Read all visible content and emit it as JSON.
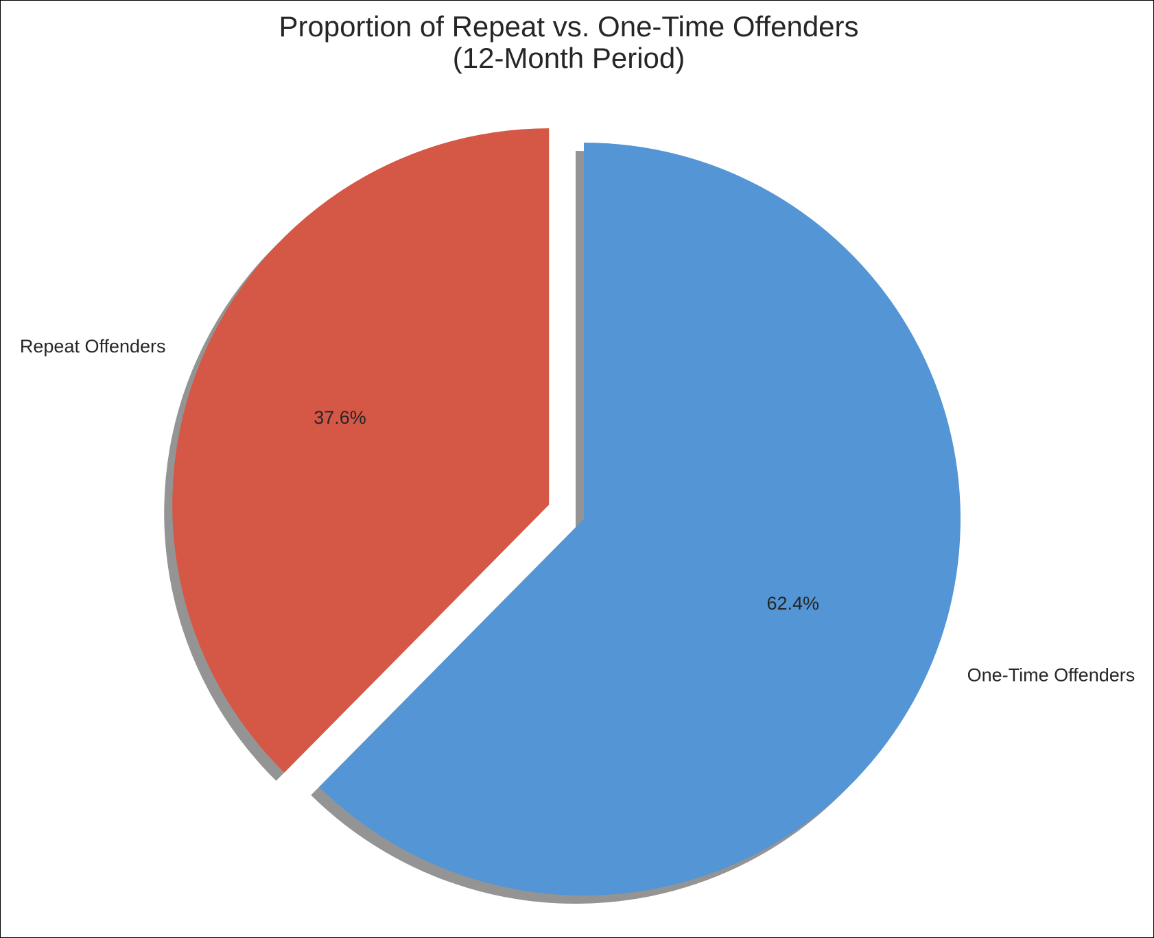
{
  "chart_data": {
    "type": "pie",
    "title": "Proportion of Repeat vs. One-Time Offenders",
    "subtitle": "(12-Month Period)",
    "slices": [
      {
        "label": "Repeat Offenders",
        "value": 37.6,
        "pct_label": "37.6%",
        "color": "#d55745",
        "exploded": true
      },
      {
        "label": "One-Time Offenders",
        "value": 62.4,
        "pct_label": "62.4%",
        "color": "#5395d5",
        "exploded": false
      }
    ],
    "start_angle_deg": 90,
    "direction": "counterclockwise",
    "shadow": true
  }
}
